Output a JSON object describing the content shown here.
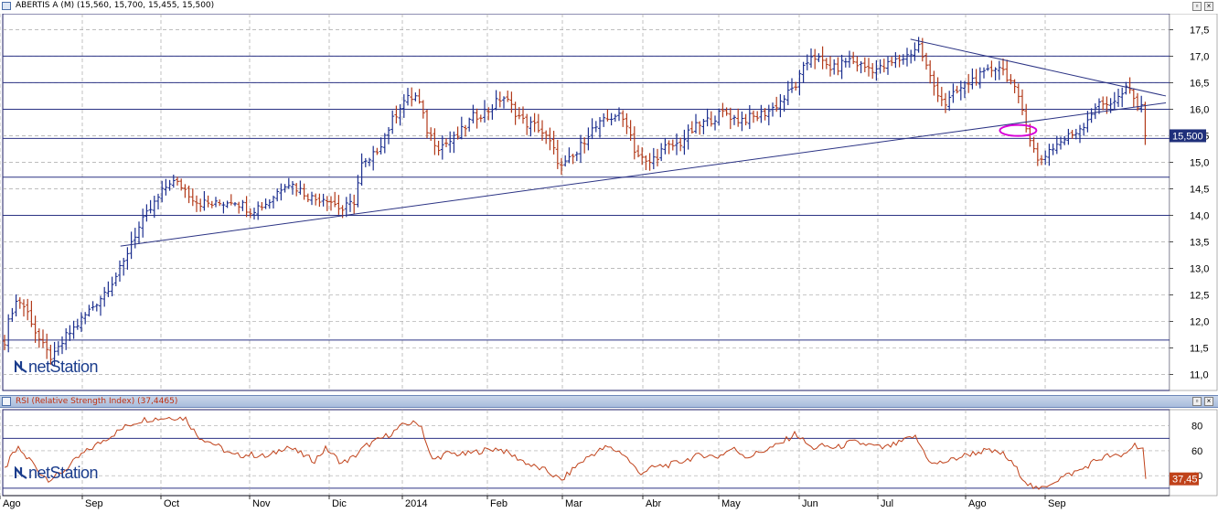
{
  "window": {
    "title": "ABERTIS A (M) (15,560, 15,700, 15,455, 15,500)",
    "rsi_title": "RSI (Relative Strength Index) (37,4465)",
    "logo_text": "netStation"
  },
  "colors": {
    "up_bar": "#1c2f8f",
    "down_bar": "#b23a1a",
    "trend_line": "#2b3384",
    "grid_dash": "#a8a8a8",
    "rsi_line": "#c0421a",
    "highlight": "#d800d8",
    "frame": "#1e1e64",
    "last_value_bg": "#1f2f7a",
    "rsi_value_bg": "#c0421a"
  },
  "chart_data": [
    {
      "type": "ohlc",
      "title": "ABERTIS A (M) (15,560, 15,700, 15,455, 15,500)",
      "ylim": [
        10.7,
        17.8
      ],
      "yticks": [
        "11,0",
        "11,5",
        "12,0",
        "12,5",
        "13,0",
        "13,5",
        "14,0",
        "14,5",
        "15,0",
        "15,5",
        "16,0",
        "16,5",
        "17,0",
        "17,5"
      ],
      "x_labels": [
        "Ago",
        "Sep",
        "Oct",
        "Nov",
        "Dic",
        "2014",
        "Feb",
        "Mar",
        "Abr",
        "May",
        "Jun",
        "Jul",
        "Ago",
        "Sep"
      ],
      "last_value": 15.5,
      "last_value_label": "15,500",
      "horizontal_levels": [
        11.65,
        14.0,
        14.72,
        15.45,
        16.0,
        16.5,
        17.0
      ],
      "trendlines": [
        {
          "from": {
            "month": 2.02,
            "price": 13.42
          },
          "to": {
            "month": 15.55,
            "price": 16.12
          }
        },
        {
          "from": {
            "month": 11.95,
            "price": 17.32
          },
          "to": {
            "month": 15.55,
            "price": 16.25
          }
        }
      ],
      "highlight": {
        "month": 13.2,
        "price": 15.6
      },
      "series": [
        {
          "anchors": [
            [
              0.0,
              11.65
            ],
            [
              0.15,
              12.05
            ],
            [
              0.3,
              12.35
            ],
            [
              0.45,
              12.4
            ],
            [
              0.65,
              12.25
            ],
            [
              0.85,
              12.0
            ],
            [
              1.0,
              11.75
            ],
            [
              1.1,
              11.45
            ],
            [
              1.2,
              11.3
            ],
            [
              1.35,
              11.7
            ],
            [
              1.5,
              11.95
            ],
            [
              1.8,
              12.5
            ],
            [
              2.05,
              13.05
            ],
            [
              2.15,
              13.5
            ],
            [
              2.35,
              14.0
            ],
            [
              2.65,
              14.65
            ],
            [
              2.8,
              14.55
            ],
            [
              3.0,
              14.25
            ],
            [
              3.2,
              14.2
            ],
            [
              3.4,
              14.3
            ],
            [
              3.6,
              14.1
            ],
            [
              3.8,
              14.25
            ],
            [
              4.0,
              14.65
            ],
            [
              4.2,
              14.45
            ],
            [
              4.35,
              14.3
            ],
            [
              4.5,
              14.35
            ],
            [
              4.7,
              14.1
            ],
            [
              4.85,
              14.25
            ],
            [
              4.95,
              14.95
            ],
            [
              5.05,
              15.0
            ],
            [
              5.2,
              15.35
            ],
            [
              5.35,
              15.75
            ],
            [
              5.5,
              16.15
            ],
            [
              5.7,
              16.25
            ],
            [
              5.85,
              15.55
            ],
            [
              6.0,
              15.3
            ],
            [
              6.2,
              15.45
            ],
            [
              6.4,
              15.85
            ],
            [
              6.6,
              16.0
            ],
            [
              6.75,
              16.25
            ],
            [
              6.85,
              16.05
            ],
            [
              7.0,
              15.75
            ],
            [
              7.2,
              15.65
            ],
            [
              7.35,
              15.35
            ],
            [
              7.5,
              14.9
            ],
            [
              7.7,
              15.15
            ],
            [
              7.85,
              15.55
            ],
            [
              8.0,
              15.7
            ],
            [
              8.2,
              15.9
            ],
            [
              8.35,
              15.75
            ],
            [
              8.45,
              15.2
            ],
            [
              8.6,
              14.95
            ],
            [
              8.8,
              15.25
            ],
            [
              9.0,
              15.35
            ],
            [
              9.2,
              15.65
            ],
            [
              9.4,
              15.8
            ],
            [
              9.6,
              15.95
            ],
            [
              9.75,
              15.8
            ],
            [
              10.0,
              15.85
            ],
            [
              10.2,
              16.0
            ],
            [
              10.35,
              16.2
            ],
            [
              10.5,
              16.45
            ],
            [
              10.7,
              17.05
            ],
            [
              10.85,
              16.85
            ],
            [
              11.0,
              16.75
            ],
            [
              11.15,
              16.95
            ],
            [
              11.35,
              16.8
            ],
            [
              11.55,
              16.75
            ],
            [
              11.75,
              16.9
            ],
            [
              11.9,
              17.0
            ],
            [
              12.05,
              17.2
            ],
            [
              12.2,
              16.5
            ],
            [
              12.35,
              16.1
            ],
            [
              12.5,
              16.35
            ],
            [
              12.65,
              16.55
            ],
            [
              12.8,
              16.65
            ],
            [
              12.95,
              16.85
            ],
            [
              13.1,
              16.55
            ],
            [
              13.25,
              16.0
            ],
            [
              13.35,
              15.45
            ],
            [
              13.45,
              15.0
            ],
            [
              13.6,
              15.25
            ],
            [
              13.75,
              15.4
            ],
            [
              13.9,
              15.55
            ],
            [
              14.05,
              15.75
            ],
            [
              14.2,
              16.05
            ],
            [
              14.35,
              16.1
            ],
            [
              14.55,
              16.2
            ],
            [
              14.7,
              16.4
            ],
            [
              14.85,
              16.05
            ],
            [
              15.0,
              15.9
            ],
            [
              15.1,
              15.95
            ],
            [
              15.25,
              16.05
            ],
            [
              15.35,
              15.75
            ],
            [
              15.45,
              15.6
            ],
            [
              15.55,
              15.5
            ]
          ]
        }
      ]
    },
    {
      "type": "line",
      "title": "RSI (Relative Strength Index) (37,4465)",
      "ylim": [
        24,
        93
      ],
      "yticks": [
        "40",
        "60",
        "80"
      ],
      "reference_levels": [
        30,
        70
      ],
      "last_value": 37.45,
      "last_value_label": "37,45",
      "series": [
        {
          "anchors": [
            [
              0.0,
              45
            ],
            [
              0.25,
              57
            ],
            [
              0.45,
              62
            ],
            [
              0.65,
              55
            ],
            [
              0.85,
              52
            ],
            [
              1.0,
              45
            ],
            [
              1.15,
              37
            ],
            [
              1.3,
              42
            ],
            [
              1.55,
              57
            ],
            [
              1.85,
              70
            ],
            [
              2.1,
              80
            ],
            [
              2.3,
              85
            ],
            [
              2.5,
              86
            ],
            [
              2.7,
              87
            ],
            [
              2.85,
              86
            ],
            [
              3.0,
              72
            ],
            [
              3.2,
              65
            ],
            [
              3.4,
              56
            ],
            [
              3.6,
              57
            ],
            [
              3.8,
              55
            ],
            [
              4.0,
              64
            ],
            [
              4.2,
              57
            ],
            [
              4.35,
              52
            ],
            [
              4.5,
              62
            ],
            [
              4.7,
              50
            ],
            [
              4.85,
              55
            ],
            [
              5.0,
              64
            ],
            [
              5.15,
              68
            ],
            [
              5.35,
              74
            ],
            [
              5.55,
              82
            ],
            [
              5.75,
              82
            ],
            [
              5.9,
              52
            ],
            [
              6.1,
              58
            ],
            [
              6.3,
              57
            ],
            [
              6.5,
              60
            ],
            [
              6.7,
              62
            ],
            [
              6.9,
              55
            ],
            [
              7.1,
              48
            ],
            [
              7.3,
              44
            ],
            [
              7.5,
              36
            ],
            [
              7.7,
              48
            ],
            [
              7.9,
              57
            ],
            [
              8.1,
              63
            ],
            [
              8.3,
              58
            ],
            [
              8.5,
              42
            ],
            [
              8.7,
              47
            ],
            [
              8.9,
              49
            ],
            [
              9.1,
              53
            ],
            [
              9.3,
              57
            ],
            [
              9.5,
              55
            ],
            [
              9.7,
              62
            ],
            [
              9.9,
              55
            ],
            [
              10.1,
              60
            ],
            [
              10.3,
              65
            ],
            [
              10.5,
              74
            ],
            [
              10.7,
              62
            ],
            [
              10.85,
              64
            ],
            [
              11.0,
              62
            ],
            [
              11.2,
              67
            ],
            [
              11.4,
              65
            ],
            [
              11.6,
              62
            ],
            [
              11.8,
              66
            ],
            [
              12.0,
              72
            ],
            [
              12.2,
              49
            ],
            [
              12.4,
              52
            ],
            [
              12.6,
              57
            ],
            [
              12.8,
              60
            ],
            [
              13.0,
              58
            ],
            [
              13.15,
              48
            ],
            [
              13.3,
              35
            ],
            [
              13.45,
              28
            ],
            [
              13.6,
              34
            ],
            [
              13.8,
              40
            ],
            [
              14.0,
              45
            ],
            [
              14.2,
              52
            ],
            [
              14.4,
              56
            ],
            [
              14.6,
              55
            ],
            [
              14.8,
              65
            ],
            [
              15.0,
              60
            ],
            [
              15.1,
              52
            ],
            [
              15.25,
              56
            ],
            [
              15.35,
              48
            ],
            [
              15.45,
              42
            ],
            [
              15.55,
              37.45
            ]
          ]
        }
      ]
    }
  ]
}
